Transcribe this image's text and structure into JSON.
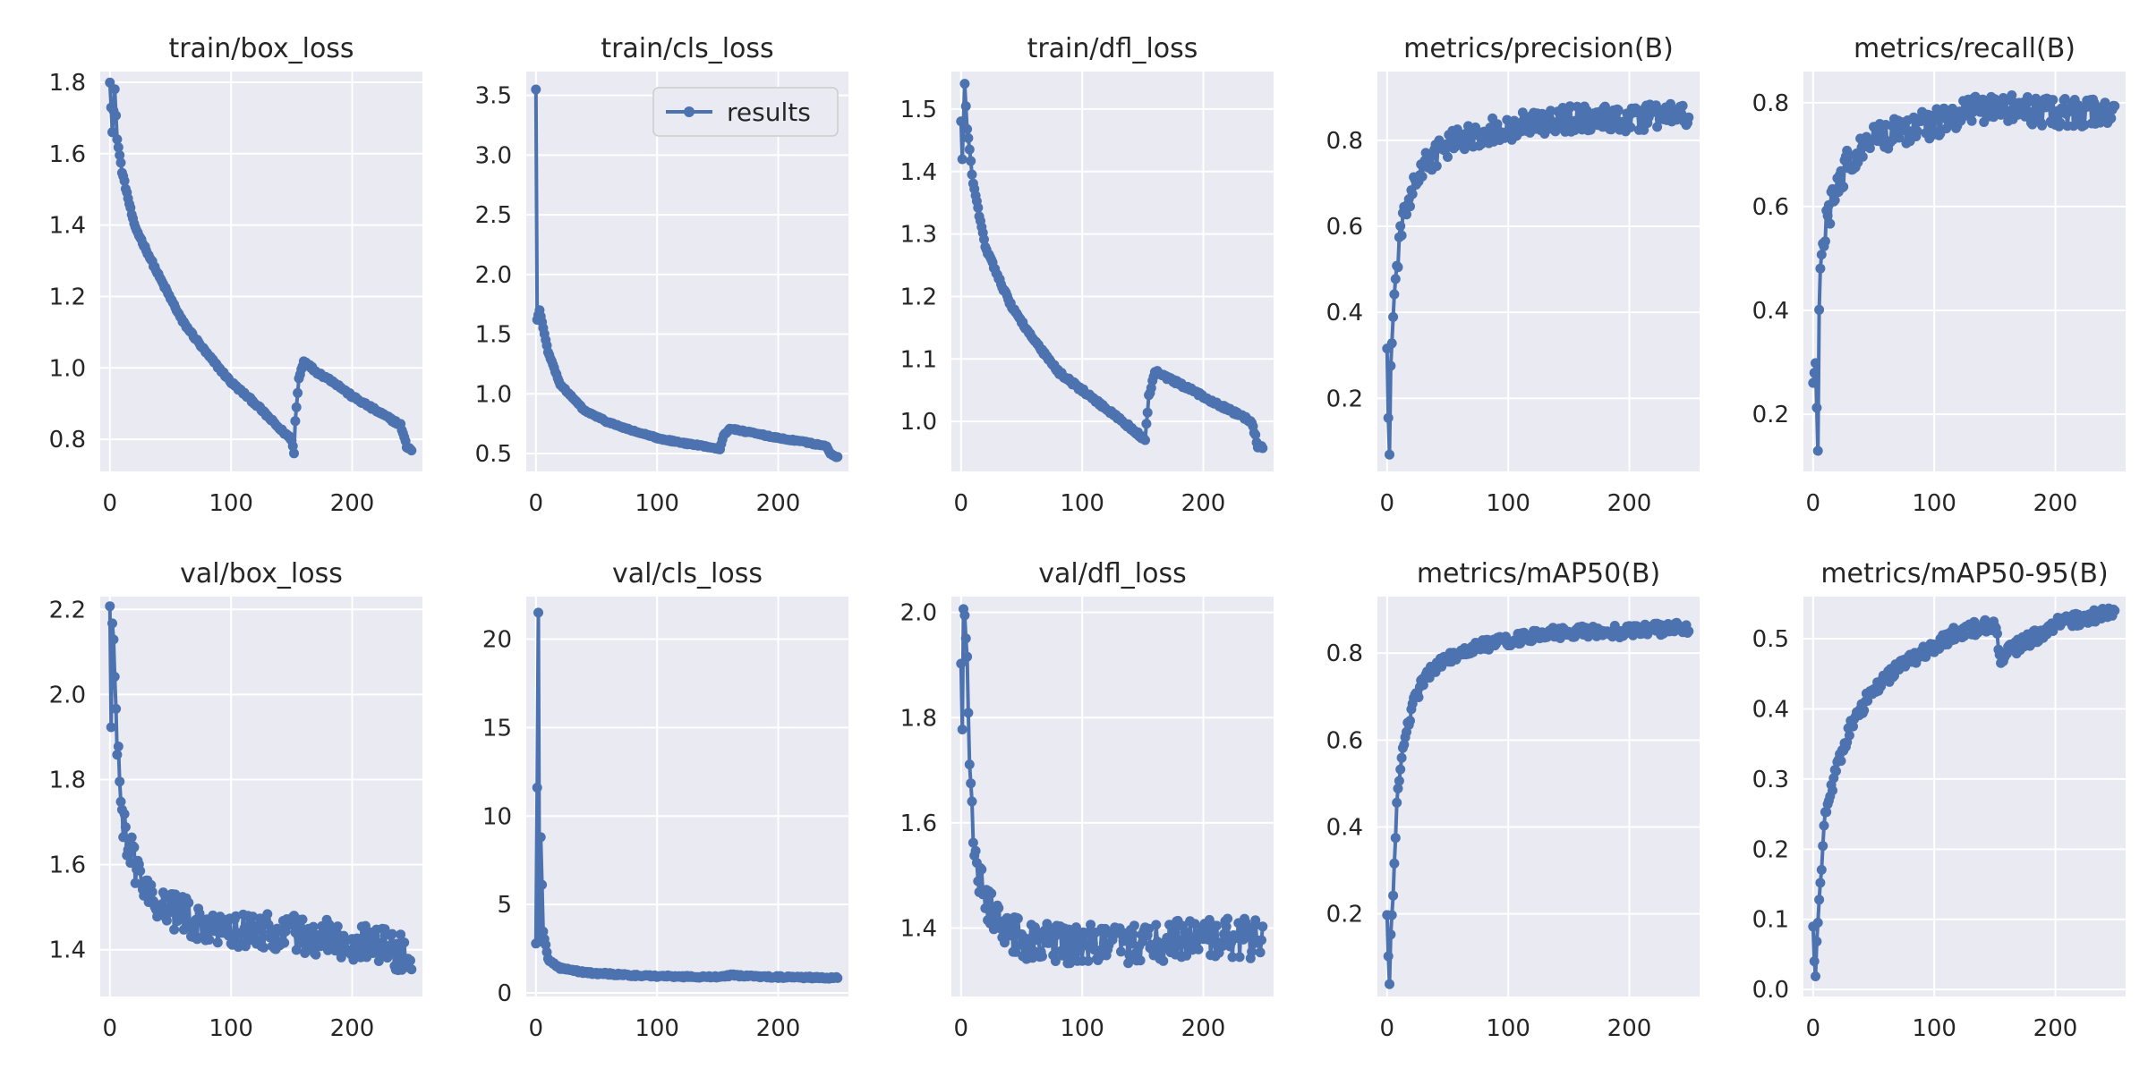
{
  "chart_data": [
    {
      "type": "line",
      "title": "train/box_loss",
      "series_name": "results",
      "n": 250,
      "xlim": [
        -8,
        258
      ],
      "ylim": [
        0.71,
        1.83
      ],
      "xticks": [
        0,
        100,
        200
      ],
      "yticks": [
        0.8,
        1.0,
        1.2,
        1.4,
        1.6,
        1.8
      ],
      "decimals": 1,
      "grid": true,
      "noise": 0.004,
      "keypoints": [
        [
          0,
          1.8
        ],
        [
          2,
          1.66
        ],
        [
          4,
          1.78
        ],
        [
          6,
          1.64
        ],
        [
          10,
          1.55
        ],
        [
          20,
          1.4
        ],
        [
          40,
          1.26
        ],
        [
          60,
          1.13
        ],
        [
          80,
          1.04
        ],
        [
          100,
          0.96
        ],
        [
          120,
          0.9
        ],
        [
          140,
          0.83
        ],
        [
          150,
          0.8
        ],
        [
          152,
          0.76
        ],
        [
          153,
          0.85
        ],
        [
          156,
          0.97
        ],
        [
          160,
          1.02
        ],
        [
          170,
          0.99
        ],
        [
          185,
          0.96
        ],
        [
          200,
          0.92
        ],
        [
          220,
          0.88
        ],
        [
          240,
          0.84
        ],
        [
          245,
          0.78
        ],
        [
          249,
          0.77
        ]
      ]
    },
    {
      "type": "line",
      "title": "train/cls_loss",
      "series_name": "results",
      "legend": "results",
      "legend_position": "top-right",
      "n": 250,
      "xlim": [
        -8,
        258
      ],
      "ylim": [
        0.35,
        3.7
      ],
      "xticks": [
        0,
        100,
        200
      ],
      "yticks": [
        0.5,
        1.0,
        1.5,
        2.0,
        2.5,
        3.0,
        3.5
      ],
      "decimals": 1,
      "grid": true,
      "noise": 0.006,
      "keypoints": [
        [
          0,
          3.55
        ],
        [
          1,
          1.62
        ],
        [
          3,
          1.7
        ],
        [
          6,
          1.55
        ],
        [
          10,
          1.35
        ],
        [
          20,
          1.08
        ],
        [
          40,
          0.86
        ],
        [
          60,
          0.76
        ],
        [
          80,
          0.69
        ],
        [
          100,
          0.63
        ],
        [
          120,
          0.59
        ],
        [
          140,
          0.56
        ],
        [
          152,
          0.54
        ],
        [
          155,
          0.65
        ],
        [
          160,
          0.71
        ],
        [
          180,
          0.67
        ],
        [
          200,
          0.63
        ],
        [
          220,
          0.6
        ],
        [
          240,
          0.56
        ],
        [
          243,
          0.5
        ],
        [
          249,
          0.47
        ]
      ]
    },
    {
      "type": "line",
      "title": "train/dfl_loss",
      "series_name": "results",
      "n": 250,
      "xlim": [
        -8,
        258
      ],
      "ylim": [
        0.92,
        1.56
      ],
      "xticks": [
        0,
        100,
        200
      ],
      "yticks": [
        1.0,
        1.1,
        1.2,
        1.3,
        1.4,
        1.5
      ],
      "decimals": 1,
      "grid": true,
      "noise": 0.003,
      "keypoints": [
        [
          0,
          1.48
        ],
        [
          1,
          1.42
        ],
        [
          3,
          1.54
        ],
        [
          5,
          1.47
        ],
        [
          10,
          1.38
        ],
        [
          20,
          1.28
        ],
        [
          40,
          1.19
        ],
        [
          60,
          1.13
        ],
        [
          80,
          1.08
        ],
        [
          100,
          1.05
        ],
        [
          120,
          1.02
        ],
        [
          140,
          0.99
        ],
        [
          152,
          0.97
        ],
        [
          155,
          1.04
        ],
        [
          160,
          1.08
        ],
        [
          180,
          1.06
        ],
        [
          200,
          1.04
        ],
        [
          220,
          1.02
        ],
        [
          240,
          1.0
        ],
        [
          245,
          0.96
        ],
        [
          249,
          0.96
        ]
      ]
    },
    {
      "type": "line",
      "title": "metrics/precision(B)",
      "series_name": "results",
      "n": 250,
      "xlim": [
        -8,
        258
      ],
      "ylim": [
        0.03,
        0.96
      ],
      "xticks": [
        0,
        100,
        200
      ],
      "yticks": [
        0.2,
        0.4,
        0.6,
        0.8
      ],
      "decimals": 1,
      "grid": true,
      "noise": 0.03,
      "keypoints": [
        [
          0,
          0.32
        ],
        [
          1,
          0.15
        ],
        [
          2,
          0.07
        ],
        [
          3,
          0.28
        ],
        [
          5,
          0.38
        ],
        [
          8,
          0.5
        ],
        [
          12,
          0.6
        ],
        [
          20,
          0.68
        ],
        [
          30,
          0.74
        ],
        [
          50,
          0.79
        ],
        [
          80,
          0.82
        ],
        [
          100,
          0.83
        ],
        [
          150,
          0.85
        ],
        [
          200,
          0.85
        ],
        [
          249,
          0.86
        ]
      ]
    },
    {
      "type": "line",
      "title": "metrics/recall(B)",
      "series_name": "results",
      "n": 250,
      "xlim": [
        -8,
        258
      ],
      "ylim": [
        0.09,
        0.86
      ],
      "xticks": [
        0,
        100,
        200
      ],
      "yticks": [
        0.2,
        0.4,
        0.6,
        0.8
      ],
      "decimals": 1,
      "grid": true,
      "noise": 0.028,
      "keypoints": [
        [
          0,
          0.26
        ],
        [
          2,
          0.3
        ],
        [
          4,
          0.13
        ],
        [
          5,
          0.42
        ],
        [
          8,
          0.52
        ],
        [
          12,
          0.58
        ],
        [
          20,
          0.64
        ],
        [
          30,
          0.69
        ],
        [
          50,
          0.73
        ],
        [
          80,
          0.75
        ],
        [
          100,
          0.76
        ],
        [
          130,
          0.79
        ],
        [
          160,
          0.79
        ],
        [
          200,
          0.78
        ],
        [
          249,
          0.78
        ]
      ]
    },
    {
      "type": "line",
      "title": "val/box_loss",
      "series_name": "results",
      "n": 250,
      "xlim": [
        -8,
        258
      ],
      "ylim": [
        1.29,
        2.23
      ],
      "xticks": [
        0,
        100,
        200
      ],
      "yticks": [
        1.4,
        1.6,
        1.8,
        2.0,
        2.2
      ],
      "decimals": 1,
      "grid": true,
      "noise": 0.045,
      "keypoints": [
        [
          0,
          2.2
        ],
        [
          1,
          1.93
        ],
        [
          2,
          2.17
        ],
        [
          3,
          2.13
        ],
        [
          5,
          1.95
        ],
        [
          8,
          1.78
        ],
        [
          12,
          1.68
        ],
        [
          20,
          1.6
        ],
        [
          30,
          1.54
        ],
        [
          50,
          1.49
        ],
        [
          80,
          1.46
        ],
        [
          100,
          1.45
        ],
        [
          150,
          1.44
        ],
        [
          200,
          1.42
        ],
        [
          249,
          1.39
        ]
      ]
    },
    {
      "type": "line",
      "title": "val/cls_loss",
      "series_name": "results",
      "n": 250,
      "xlim": [
        -8,
        258
      ],
      "ylim": [
        -0.2,
        22.4
      ],
      "xticks": [
        0,
        100,
        200
      ],
      "yticks": [
        0,
        5,
        10,
        15,
        20
      ],
      "decimals": 0,
      "grid": true,
      "noise": 0.06,
      "keypoints": [
        [
          0,
          2.8
        ],
        [
          1,
          11.6
        ],
        [
          2,
          21.5
        ],
        [
          3,
          2.9
        ],
        [
          4,
          8.8
        ],
        [
          6,
          3.5
        ],
        [
          10,
          1.9
        ],
        [
          20,
          1.4
        ],
        [
          40,
          1.15
        ],
        [
          80,
          1.0
        ],
        [
          100,
          0.95
        ],
        [
          150,
          0.9
        ],
        [
          160,
          1.0
        ],
        [
          200,
          0.9
        ],
        [
          249,
          0.85
        ]
      ]
    },
    {
      "type": "line",
      "title": "val/dfl_loss",
      "series_name": "results",
      "n": 250,
      "xlim": [
        -8,
        258
      ],
      "ylim": [
        1.27,
        2.03
      ],
      "xticks": [
        0,
        100,
        200
      ],
      "yticks": [
        1.4,
        1.6,
        1.8,
        2.0
      ],
      "decimals": 1,
      "grid": true,
      "noise": 0.038,
      "keypoints": [
        [
          0,
          1.9
        ],
        [
          1,
          1.78
        ],
        [
          2,
          2.01
        ],
        [
          3,
          1.99
        ],
        [
          5,
          1.9
        ],
        [
          8,
          1.66
        ],
        [
          12,
          1.53
        ],
        [
          20,
          1.45
        ],
        [
          30,
          1.41
        ],
        [
          50,
          1.38
        ],
        [
          80,
          1.37
        ],
        [
          100,
          1.37
        ],
        [
          150,
          1.37
        ],
        [
          200,
          1.38
        ],
        [
          249,
          1.38
        ]
      ]
    },
    {
      "type": "line",
      "title": "metrics/mAP50(B)",
      "series_name": "results",
      "n": 250,
      "xlim": [
        -8,
        258
      ],
      "ylim": [
        0.01,
        0.93
      ],
      "xticks": [
        0,
        100,
        200
      ],
      "yticks": [
        0.2,
        0.4,
        0.6,
        0.8
      ],
      "decimals": 1,
      "grid": true,
      "noise": 0.014,
      "keypoints": [
        [
          0,
          0.2
        ],
        [
          1,
          0.1
        ],
        [
          2,
          0.04
        ],
        [
          3,
          0.15
        ],
        [
          5,
          0.25
        ],
        [
          8,
          0.45
        ],
        [
          12,
          0.57
        ],
        [
          20,
          0.67
        ],
        [
          30,
          0.74
        ],
        [
          50,
          0.79
        ],
        [
          80,
          0.82
        ],
        [
          100,
          0.83
        ],
        [
          150,
          0.85
        ],
        [
          200,
          0.85
        ],
        [
          249,
          0.86
        ]
      ]
    },
    {
      "type": "line",
      "title": "metrics/mAP50-95(B)",
      "series_name": "results",
      "n": 250,
      "xlim": [
        -8,
        258
      ],
      "ylim": [
        -0.01,
        0.56
      ],
      "xticks": [
        0,
        100,
        200
      ],
      "yticks": [
        0.0,
        0.1,
        0.2,
        0.3,
        0.4,
        0.5
      ],
      "decimals": 1,
      "grid": true,
      "noise": 0.01,
      "keypoints": [
        [
          0,
          0.09
        ],
        [
          1,
          0.04
        ],
        [
          2,
          0.02
        ],
        [
          3,
          0.07
        ],
        [
          6,
          0.15
        ],
        [
          10,
          0.25
        ],
        [
          20,
          0.32
        ],
        [
          30,
          0.37
        ],
        [
          50,
          0.43
        ],
        [
          80,
          0.47
        ],
        [
          100,
          0.49
        ],
        [
          120,
          0.51
        ],
        [
          150,
          0.52
        ],
        [
          155,
          0.47
        ],
        [
          160,
          0.48
        ],
        [
          180,
          0.5
        ],
        [
          200,
          0.52
        ],
        [
          249,
          0.54
        ]
      ]
    }
  ],
  "colors": {
    "line": "#4c72b0",
    "axes_bg": "#eaeaf2",
    "grid": "#ffffff",
    "text": "#262626"
  }
}
